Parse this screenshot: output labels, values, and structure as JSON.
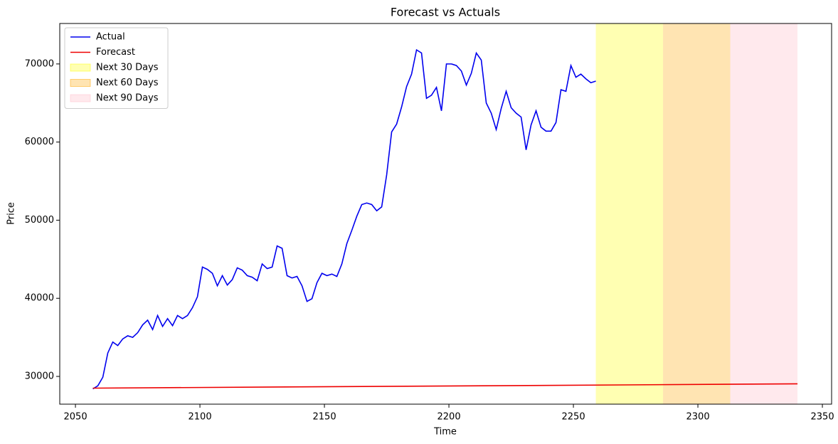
{
  "chart_data": {
    "type": "line",
    "title": "Forecast vs Actuals",
    "x_label": "Time",
    "y_label": "Price",
    "xlim": [
      2043.7,
      2353.7
    ],
    "ylim": [
      26450,
      75180
    ],
    "xticks": [
      2050,
      2100,
      2150,
      2200,
      2250,
      2300,
      2350
    ],
    "yticks": [
      30000,
      40000,
      50000,
      60000,
      70000
    ],
    "legend": "upper left",
    "series": [
      {
        "name": "Actual",
        "color": "#0000ee",
        "x": [
          2057,
          2059,
          2061,
          2063,
          2065,
          2067,
          2069,
          2071,
          2073,
          2075,
          2077,
          2079,
          2081,
          2083,
          2085,
          2087,
          2089,
          2091,
          2093,
          2095,
          2097,
          2099,
          2101,
          2103,
          2105,
          2107,
          2109,
          2111,
          2113,
          2115,
          2117,
          2119,
          2121,
          2123,
          2125,
          2127,
          2129,
          2131,
          2133,
          2135,
          2137,
          2139,
          2141,
          2143,
          2145,
          2147,
          2149,
          2151,
          2153,
          2155,
          2157,
          2159,
          2161,
          2163,
          2165,
          2167,
          2169,
          2171,
          2173,
          2175,
          2177,
          2179,
          2181,
          2183,
          2185,
          2187,
          2189,
          2191,
          2193,
          2195,
          2197,
          2199,
          2201,
          2203,
          2205,
          2207,
          2209,
          2211,
          2213,
          2215,
          2217,
          2219,
          2221,
          2223,
          2225,
          2227,
          2229,
          2231,
          2233,
          2235,
          2237,
          2239,
          2241,
          2243,
          2245,
          2247,
          2249,
          2251,
          2253,
          2255,
          2257,
          2259
        ],
        "values": [
          28400,
          28800,
          29900,
          33000,
          34400,
          33950,
          34800,
          35200,
          35000,
          35600,
          36600,
          37200,
          36000,
          37800,
          36400,
          37400,
          36500,
          37800,
          37400,
          37800,
          38800,
          40200,
          44000,
          43700,
          43200,
          41600,
          42900,
          41700,
          42400,
          43900,
          43600,
          42900,
          42700,
          42250,
          44400,
          43800,
          44000,
          46700,
          46400,
          42900,
          42600,
          42800,
          41600,
          39600,
          39950,
          42000,
          43200,
          42900,
          43100,
          42800,
          44400,
          47000,
          48700,
          50500,
          52000,
          52200,
          52000,
          51200,
          51700,
          55800,
          61300,
          62300,
          64500,
          67100,
          68700,
          71800,
          71400,
          65600,
          66000,
          67000,
          64000,
          70000,
          70000,
          69800,
          69100,
          67300,
          68800,
          71400,
          70500,
          65000,
          63700,
          61600,
          64300,
          66500,
          64400,
          63700,
          63200,
          59000,
          62200,
          64000,
          61900,
          61400,
          61400,
          62500,
          66700,
          66500,
          69800,
          68300,
          68700,
          68100,
          67600,
          67800
        ]
      },
      {
        "name": "Forecast",
        "color": "#ee0000",
        "x": [
          2057,
          2340
        ],
        "values": [
          28500,
          29050
        ]
      }
    ],
    "spans": [
      {
        "name": "Next 30 Days",
        "start": 2259,
        "end": 2286,
        "color": "#ffff00",
        "alpha": 0.3
      },
      {
        "name": "Next 60 Days",
        "start": 2286,
        "end": 2313,
        "color": "#ffa500",
        "alpha": 0.3
      },
      {
        "name": "Next 90 Days",
        "start": 2313,
        "end": 2340,
        "color": "#ffc0cb",
        "alpha": 0.35
      }
    ]
  }
}
